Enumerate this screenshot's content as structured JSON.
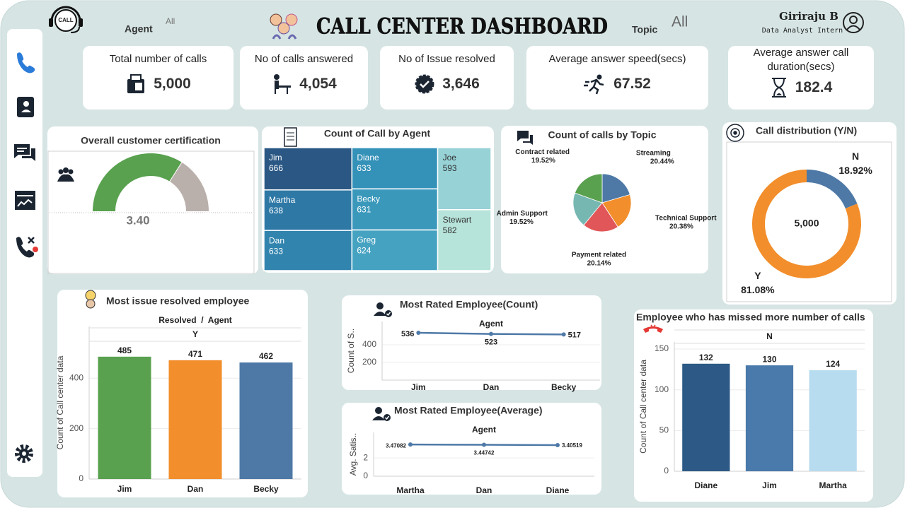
{
  "header": {
    "logo": "CALL",
    "agent_label": "Agent",
    "agent_value": "All",
    "title": "CALL CENTER DASHBOARD",
    "topic_label": "Topic",
    "topic_value": "All",
    "user_name": "Giriraju B",
    "user_role": "Data Analyst Intern"
  },
  "kpis": [
    {
      "label": "Total number of calls",
      "value": "5,000"
    },
    {
      "label": "No of calls answered",
      "value": "4,054"
    },
    {
      "label": "No of Issue resolved",
      "value": "3,646"
    },
    {
      "label": "Average answer speed(secs)",
      "value": "67.52"
    },
    {
      "label": "Average answer call duration(secs)",
      "value": "182.4"
    }
  ],
  "chart_data": [
    {
      "type": "gauge",
      "title": "Overall customer certification",
      "value": 3.4,
      "value_label": "3.40",
      "ylim": [
        0,
        5
      ],
      "color": "#59a14f",
      "track_color": "#bab0ab"
    },
    {
      "type": "treemap",
      "title": "Count of Call by Agent",
      "categories": [
        "Jim",
        "Martha",
        "Dan",
        "Diane",
        "Becky",
        "Greg",
        "Joe",
        "Stewart"
      ],
      "values": [
        666,
        638,
        633,
        633,
        631,
        624,
        593,
        582
      ],
      "colors": [
        "#2a5783",
        "#2e78a6",
        "#3184ae",
        "#3491b8",
        "#3a98bb",
        "#45a2c1",
        "#96d2d6",
        "#b7e4da"
      ]
    },
    {
      "type": "pie",
      "title": "Count of calls by Topic",
      "categories": [
        "Streaming",
        "Technical Support",
        "Payment related",
        "Admin Support",
        "Contract related"
      ],
      "values": [
        20.44,
        20.38,
        20.14,
        19.52,
        19.52
      ],
      "value_labels": [
        "20.44%",
        "20.38%",
        "20.14%",
        "19.52%",
        "19.52%"
      ],
      "colors": [
        "#4e79a7",
        "#f28e2b",
        "#e15759",
        "#76b7b2",
        "#59a14f"
      ]
    },
    {
      "type": "donut",
      "title": "Call distribution (Y/N)",
      "categories": [
        "N",
        "Y"
      ],
      "values": [
        18.92,
        81.08
      ],
      "value_labels": [
        "18.92%",
        "81.08%"
      ],
      "center_label": "5,000",
      "colors": [
        "#4e79a7",
        "#f28e2b"
      ]
    },
    {
      "type": "bar",
      "title": "Most issue resolved employee",
      "subtitle": "Resolved  /  Agent",
      "facet": "Y",
      "y_label": "Count of Call center data",
      "categories": [
        "Jim",
        "Dan",
        "Becky"
      ],
      "values": [
        485,
        471,
        462
      ],
      "colors": [
        "#59a14f",
        "#f28e2b",
        "#4e79a7"
      ],
      "ylim": [
        0,
        605
      ],
      "yticks": [
        0,
        200,
        400
      ],
      "grid": true
    },
    {
      "type": "line",
      "title": "Most Rated Employee(Count)",
      "facet": "Agent",
      "y_label": "Count of S..",
      "categories": [
        "Jim",
        "Dan",
        "Becky"
      ],
      "values": [
        536,
        523,
        517
      ],
      "color": "#4e79a7",
      "ylim": [
        0,
        664
      ],
      "yticks": [
        200,
        400
      ],
      "grid": true
    },
    {
      "type": "line",
      "title": "Most Rated Employee(Average)",
      "facet": "Agent",
      "y_label": "Avg. Satis..",
      "categories": [
        "Martha",
        "Dan",
        "Diane"
      ],
      "values": [
        3.47082,
        3.44742,
        3.40519
      ],
      "color": "#4e79a7",
      "ylim": [
        0,
        4.8
      ],
      "yticks": [
        0,
        2
      ],
      "grid": true
    },
    {
      "type": "bar",
      "title": "Employee who has missed more number of calls",
      "facet": "N",
      "y_label": "Count of Call center data",
      "categories": [
        "Diane",
        "Jim",
        "Martha"
      ],
      "values": [
        132,
        130,
        124
      ],
      "colors": [
        "#2c5985",
        "#4a79ab",
        "#b8dcef"
      ],
      "ylim": [
        0,
        158.7
      ],
      "yticks": [
        0,
        50,
        100,
        150
      ],
      "grid": true
    }
  ]
}
